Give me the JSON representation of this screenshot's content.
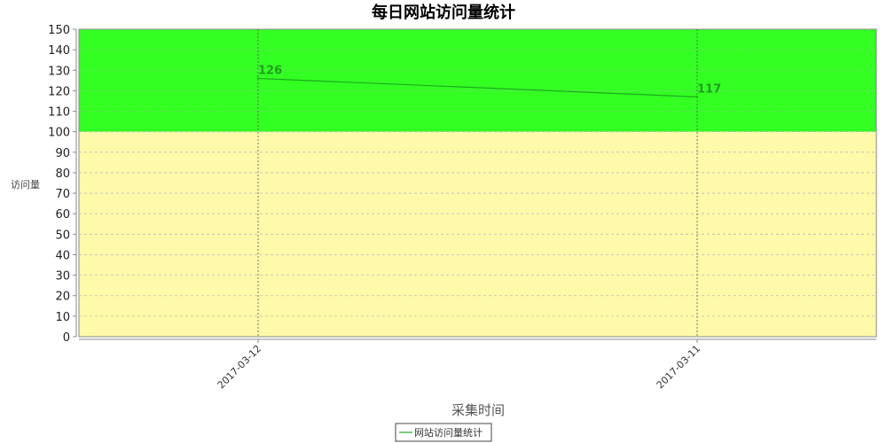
{
  "chart_data": {
    "type": "line",
    "title": "每日网站访问量统计",
    "xlabel": "采集时间",
    "ylabel": "访问量",
    "categories": [
      "2017-03-12",
      "2017-03-11"
    ],
    "series": [
      {
        "name": "网站访问量统计",
        "values": [
          126,
          117
        ],
        "color": "#1faa1f"
      }
    ],
    "ylim": [
      0,
      150
    ],
    "yticks": [
      0,
      10,
      20,
      30,
      40,
      50,
      60,
      70,
      80,
      90,
      100,
      110,
      120,
      130,
      140,
      150
    ],
    "bands": [
      {
        "from": 0,
        "to": 100,
        "color": "#fffaaa"
      },
      {
        "from": 100,
        "to": 150,
        "color": "#33ff22"
      }
    ],
    "grid": true,
    "legend": "bottom-center"
  }
}
